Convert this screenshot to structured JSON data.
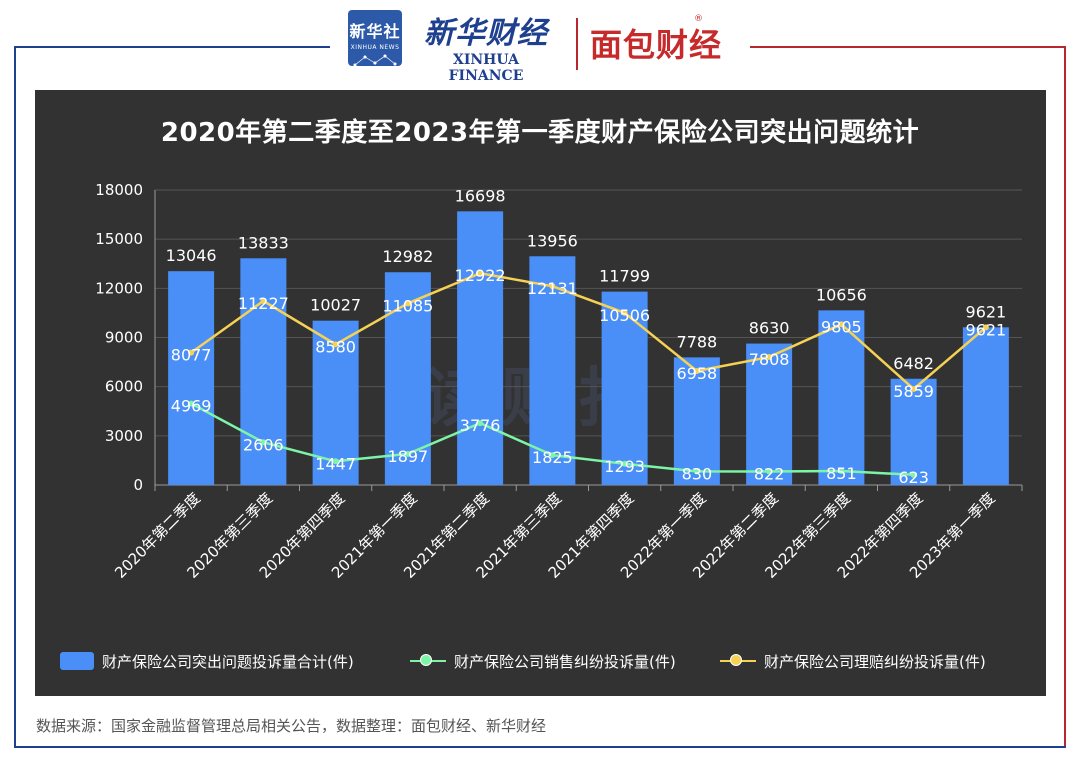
{
  "header": {
    "xinhua_box_cn": "新华社",
    "xinhua_box_en": "XINHUA NEWS",
    "xinhua_finance_cn": "新华财经",
    "xinhua_finance_en": "XINHUA FINANCE",
    "mianbao_logo": "面包财经",
    "registered_mark": "®"
  },
  "footer": {
    "source": "数据来源：国家金融监督管理总局相关公告，数据整理：面包财经、新华财经"
  },
  "colors": {
    "panel_bg": "#323232",
    "bar": "#4a8ff7",
    "sales_line": "#7df5a7",
    "claims_line": "#f5d254",
    "grid": "#555555",
    "text": "#ffffff"
  },
  "watermark": "读财报",
  "chart_data": {
    "type": "bar",
    "title": "2020年第二季度至2023年第一季度财产保险公司突出问题统计",
    "categories": [
      "2020年第二季度",
      "2020年第三季度",
      "2020年第四季度",
      "2021年第一季度",
      "2021年第二季度",
      "2021年第三季度",
      "2021年第四季度",
      "2022年第一季度",
      "2022年第二季度",
      "2022年第三季度",
      "2022年第四季度",
      "2023年第一季度"
    ],
    "ylim": [
      0,
      18000
    ],
    "yticks": [
      0,
      3000,
      6000,
      9000,
      12000,
      15000,
      18000
    ],
    "grid": true,
    "legend_position": "bottom",
    "series": [
      {
        "name": "财产保险公司突出问题投诉量合计(件)",
        "type": "bar",
        "values": [
          13046,
          13833,
          10027,
          12982,
          16698,
          13956,
          11799,
          7788,
          8630,
          10656,
          6482,
          9621
        ]
      },
      {
        "name": "财产保险公司销售纠纷投诉量(件)",
        "type": "line",
        "values": [
          4969,
          2606,
          1447,
          1897,
          3776,
          1825,
          1293,
          830,
          822,
          851,
          623,
          null
        ]
      },
      {
        "name": "财产保险公司理赔纠纷投诉量(件)",
        "type": "line",
        "values": [
          8077,
          11227,
          8580,
          11085,
          12922,
          12131,
          10506,
          6958,
          7808,
          9805,
          5859,
          9621
        ]
      }
    ]
  }
}
